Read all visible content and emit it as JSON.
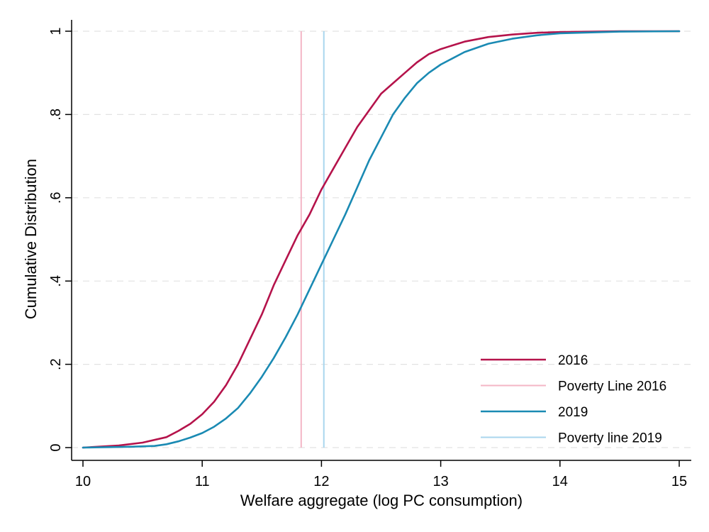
{
  "chart_data": {
    "type": "line",
    "xlabel": "Welfare aggregate (log PC consumption)",
    "ylabel": "Cumulative Distribution",
    "xlim": [
      10,
      15
    ],
    "ylim": [
      0,
      1
    ],
    "xticks": [
      10,
      11,
      12,
      13,
      14,
      15
    ],
    "xtick_labels": [
      "10",
      "11",
      "12",
      "13",
      "14",
      "15"
    ],
    "yticks": [
      0,
      0.2,
      0.4,
      0.6,
      0.8,
      1
    ],
    "ytick_labels": [
      "0",
      ".2",
      ".4",
      ".6",
      ".8",
      "1"
    ],
    "grid": "horizontal dashed",
    "legend_position": "bottom-right",
    "series": [
      {
        "name": "2016",
        "color": "#b5134b",
        "points": [
          [
            10.0,
            0.0
          ],
          [
            10.3,
            0.005
          ],
          [
            10.5,
            0.012
          ],
          [
            10.7,
            0.025
          ],
          [
            10.8,
            0.04
          ],
          [
            10.9,
            0.057
          ],
          [
            11.0,
            0.08
          ],
          [
            11.1,
            0.11
          ],
          [
            11.2,
            0.15
          ],
          [
            11.3,
            0.2
          ],
          [
            11.4,
            0.26
          ],
          [
            11.5,
            0.32
          ],
          [
            11.6,
            0.39
          ],
          [
            11.7,
            0.45
          ],
          [
            11.8,
            0.51
          ],
          [
            11.9,
            0.56
          ],
          [
            12.0,
            0.62
          ],
          [
            12.1,
            0.67
          ],
          [
            12.2,
            0.72
          ],
          [
            12.3,
            0.77
          ],
          [
            12.4,
            0.81
          ],
          [
            12.5,
            0.85
          ],
          [
            12.6,
            0.875
          ],
          [
            12.7,
            0.9
          ],
          [
            12.8,
            0.925
          ],
          [
            12.9,
            0.945
          ],
          [
            13.0,
            0.957
          ],
          [
            13.2,
            0.975
          ],
          [
            13.4,
            0.986
          ],
          [
            13.6,
            0.992
          ],
          [
            13.8,
            0.996
          ],
          [
            14.0,
            0.998
          ],
          [
            14.5,
            1.0
          ],
          [
            15.0,
            1.0
          ]
        ]
      },
      {
        "name": "Poverty Line 2016",
        "color": "#f4b6c6",
        "vline": 11.83
      },
      {
        "name": "2019",
        "color": "#1a8ab3",
        "points": [
          [
            10.0,
            0.0
          ],
          [
            10.4,
            0.002
          ],
          [
            10.6,
            0.004
          ],
          [
            10.7,
            0.008
          ],
          [
            10.8,
            0.015
          ],
          [
            10.9,
            0.024
          ],
          [
            11.0,
            0.035
          ],
          [
            11.1,
            0.05
          ],
          [
            11.2,
            0.07
          ],
          [
            11.3,
            0.095
          ],
          [
            11.4,
            0.13
          ],
          [
            11.5,
            0.17
          ],
          [
            11.6,
            0.215
          ],
          [
            11.7,
            0.265
          ],
          [
            11.8,
            0.32
          ],
          [
            11.9,
            0.38
          ],
          [
            12.0,
            0.44
          ],
          [
            12.1,
            0.5
          ],
          [
            12.2,
            0.56
          ],
          [
            12.3,
            0.625
          ],
          [
            12.4,
            0.69
          ],
          [
            12.5,
            0.745
          ],
          [
            12.6,
            0.8
          ],
          [
            12.7,
            0.84
          ],
          [
            12.8,
            0.875
          ],
          [
            12.9,
            0.9
          ],
          [
            13.0,
            0.92
          ],
          [
            13.2,
            0.95
          ],
          [
            13.4,
            0.97
          ],
          [
            13.6,
            0.982
          ],
          [
            13.8,
            0.99
          ],
          [
            14.0,
            0.995
          ],
          [
            14.5,
            0.999
          ],
          [
            15.0,
            1.0
          ]
        ]
      },
      {
        "name": "Poverty line 2019",
        "color": "#a9d6ee",
        "vline": 12.02
      }
    ]
  }
}
